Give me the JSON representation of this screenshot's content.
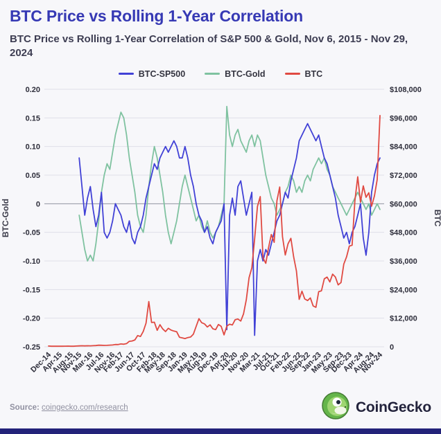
{
  "page": {
    "title": "BTC Price vs Rolling 1-Year Correlation",
    "subtitle": "BTC Price vs Rolling 1-Year Correlation of S&P 500 & Gold, Nov 6, 2015 - Nov 29, 2024"
  },
  "colors": {
    "title": "#3639b4",
    "background": "#f7f7fa",
    "gridline": "#dfdfe8",
    "zero_line": "#8f93a0",
    "bottom_bar": "#232279"
  },
  "legend": [
    {
      "label": "BTC-SP500",
      "color": "#4141d6"
    },
    {
      "label": "BTC-Gold",
      "color": "#7fc2a0"
    },
    {
      "label": "BTC",
      "color": "#e04a42"
    }
  ],
  "footer": {
    "source_label": "Source:",
    "source_link": "coingecko.com/research",
    "brand": "CoinGecko",
    "brand_icon": "coingecko-gecko-icon"
  },
  "chart_data": {
    "type": "line",
    "title": "BTC Price vs Rolling 1-Year Correlation",
    "xlabel": "",
    "x_start": "Dec-2014",
    "x_interval": "monthly",
    "grid": "horizontal-only",
    "legend_position": "top-center",
    "left_axis": {
      "label": "BTC-Gold",
      "min": -0.25,
      "max": 0.2,
      "ticks": [
        {
          "label": "0.20",
          "value": 0.2
        },
        {
          "label": "0.15",
          "value": 0.15
        },
        {
          "label": "0.10",
          "value": 0.1
        },
        {
          "label": "0.05",
          "value": 0.05
        },
        {
          "label": "0",
          "value": 0
        },
        {
          "label": "-0.05",
          "value": -0.05
        },
        {
          "label": "-0.10",
          "value": -0.1
        },
        {
          "label": "-0.15",
          "value": -0.15
        },
        {
          "label": "-0.20",
          "value": -0.2
        },
        {
          "label": "-0.25",
          "value": -0.25
        }
      ]
    },
    "right_axis": {
      "label": "BTC",
      "min": 0,
      "max": 108000,
      "ticks": [
        {
          "label": "$108,000",
          "value": 108000
        },
        {
          "label": "$96,000",
          "value": 96000
        },
        {
          "label": "$84,000",
          "value": 84000
        },
        {
          "label": "$72,000",
          "value": 72000
        },
        {
          "label": "$60,000",
          "value": 60000
        },
        {
          "label": "$48,000",
          "value": 48000
        },
        {
          "label": "$36,000",
          "value": 36000
        },
        {
          "label": "$24,000",
          "value": 24000
        },
        {
          "label": "$12,000",
          "value": 12000
        },
        {
          "label": "0",
          "value": 0
        }
      ]
    },
    "x_ticks": [
      {
        "label": "Dec-14",
        "i": 0
      },
      {
        "label": "Apr-15",
        "i": 4
      },
      {
        "label": "Aug-15",
        "i": 8
      },
      {
        "label": "Nov-15",
        "i": 11
      },
      {
        "label": "Mar-16",
        "i": 15
      },
      {
        "label": "Jul-16",
        "i": 19
      },
      {
        "label": "Nov-16",
        "i": 23
      },
      {
        "label": "Feb-17",
        "i": 26
      },
      {
        "label": "Jun-17",
        "i": 30
      },
      {
        "label": "Oct-17",
        "i": 34
      },
      {
        "label": "Feb-18",
        "i": 38
      },
      {
        "label": "May-18",
        "i": 41
      },
      {
        "label": "Sep-18",
        "i": 45
      },
      {
        "label": "Jan-19",
        "i": 49
      },
      {
        "label": "May-19",
        "i": 53
      },
      {
        "label": "Aug-19",
        "i": 56
      },
      {
        "label": "Dec-19",
        "i": 60
      },
      {
        "label": "Apr-20",
        "i": 64
      },
      {
        "label": "Jul-20",
        "i": 67
      },
      {
        "label": "Nov-20",
        "i": 71
      },
      {
        "label": "Mar-21",
        "i": 75
      },
      {
        "label": "Jul-21",
        "i": 79
      },
      {
        "label": "Oct-21",
        "i": 82
      },
      {
        "label": "Feb-22",
        "i": 86
      },
      {
        "label": "Jun-22",
        "i": 90
      },
      {
        "label": "Sep-22",
        "i": 93
      },
      {
        "label": "Jan-23",
        "i": 97
      },
      {
        "label": "May-23",
        "i": 101
      },
      {
        "label": "Sep-23",
        "i": 105
      },
      {
        "label": "Dec-23",
        "i": 108
      },
      {
        "label": "Apr-24",
        "i": 112
      },
      {
        "label": "Aug-24",
        "i": 116
      },
      {
        "label": "Nov-24",
        "i": 119
      }
    ],
    "series": [
      {
        "name": "BTC-SP500",
        "axis": "left",
        "color": "#4141d6",
        "values": [
          null,
          null,
          null,
          null,
          null,
          null,
          null,
          null,
          null,
          null,
          null,
          0.08,
          0.03,
          -0.02,
          0.01,
          0.03,
          -0.01,
          -0.04,
          -0.02,
          0.02,
          -0.05,
          -0.06,
          -0.05,
          -0.03,
          0.0,
          -0.01,
          -0.02,
          -0.04,
          -0.05,
          -0.03,
          -0.06,
          -0.07,
          -0.05,
          -0.04,
          -0.02,
          0.01,
          0.03,
          0.05,
          0.07,
          0.06,
          0.08,
          0.09,
          0.1,
          0.09,
          0.1,
          0.11,
          0.1,
          0.08,
          0.08,
          0.1,
          0.08,
          0.05,
          0.03,
          0.0,
          -0.02,
          -0.03,
          -0.05,
          -0.04,
          -0.06,
          -0.07,
          -0.05,
          -0.04,
          -0.03,
          0.0,
          -0.22,
          -0.02,
          0.01,
          -0.02,
          0.03,
          0.04,
          0.01,
          -0.02,
          0.0,
          0.02,
          -0.23,
          -0.1,
          -0.08,
          -0.1,
          -0.08,
          -0.09,
          -0.07,
          -0.05,
          -0.03,
          -0.02,
          0.0,
          0.02,
          0.01,
          0.04,
          0.06,
          0.08,
          0.11,
          0.12,
          0.13,
          0.14,
          0.13,
          0.12,
          0.11,
          0.12,
          0.1,
          0.08,
          0.07,
          0.05,
          0.03,
          0.01,
          -0.02,
          -0.04,
          -0.06,
          -0.05,
          -0.07,
          -0.05,
          -0.04,
          -0.02,
          0.0,
          -0.06,
          -0.09,
          -0.05,
          0.02,
          0.05,
          0.07,
          0.08
        ]
      },
      {
        "name": "BTC-Gold",
        "axis": "left",
        "color": "#7fc2a0",
        "values": [
          null,
          null,
          null,
          null,
          null,
          null,
          null,
          null,
          null,
          null,
          null,
          -0.02,
          -0.05,
          -0.08,
          -0.1,
          -0.09,
          -0.1,
          -0.07,
          -0.03,
          0.02,
          0.05,
          0.07,
          0.06,
          0.09,
          0.12,
          0.14,
          0.16,
          0.15,
          0.12,
          0.08,
          0.05,
          0.02,
          -0.02,
          -0.04,
          -0.05,
          -0.02,
          0.03,
          0.07,
          0.1,
          0.08,
          0.05,
          0.02,
          -0.02,
          -0.05,
          -0.07,
          -0.05,
          -0.03,
          0.0,
          0.03,
          0.05,
          0.03,
          0.01,
          -0.01,
          -0.03,
          -0.02,
          -0.04,
          -0.05,
          -0.03,
          -0.05,
          -0.06,
          -0.05,
          -0.04,
          -0.02,
          0.0,
          0.17,
          0.12,
          0.1,
          0.12,
          0.13,
          0.11,
          0.1,
          0.09,
          0.11,
          0.12,
          0.1,
          0.12,
          0.11,
          0.08,
          0.05,
          0.03,
          0.01,
          0.0,
          -0.02,
          -0.01,
          0.0,
          0.02,
          0.03,
          0.05,
          0.04,
          0.02,
          0.03,
          0.02,
          0.04,
          0.05,
          0.04,
          0.06,
          0.07,
          0.08,
          0.07,
          0.08,
          0.06,
          0.05,
          0.03,
          0.02,
          0.01,
          0.0,
          -0.01,
          -0.02,
          -0.01,
          0.0,
          0.01,
          0.02,
          0.01,
          0.0,
          -0.01,
          0.0,
          -0.02,
          -0.01,
          0.0,
          -0.01
        ]
      },
      {
        "name": "BTC",
        "axis": "right",
        "color": "#e04a42",
        "values": [
          320,
          220,
          250,
          245,
          235,
          230,
          260,
          285,
          230,
          235,
          315,
          375,
          430,
          370,
          435,
          415,
          450,
          530,
          670,
          625,
          575,
          610,
          700,
          745,
          960,
          920,
          1190,
          1080,
          1350,
          2300,
          2450,
          2870,
          4700,
          4340,
          6450,
          9900,
          19000,
          10200,
          10300,
          6900,
          9250,
          7500,
          6400,
          7750,
          7000,
          6600,
          6300,
          4000,
          3750,
          3450,
          3850,
          4100,
          5300,
          8550,
          11800,
          10100,
          9600,
          8300,
          9200,
          7550,
          7200,
          9350,
          8550,
          5000,
          8650,
          9450,
          9150,
          11350,
          11650,
          10800,
          13800,
          19700,
          29000,
          33100,
          45200,
          58900,
          63000,
          37300,
          35000,
          41600,
          47100,
          43800,
          61300,
          67000,
          46200,
          38500,
          43200,
          45500,
          37700,
          31800,
          19900,
          23300,
          20050,
          19400,
          20500,
          17150,
          16550,
          23100,
          23500,
          28500,
          29250,
          27200,
          30450,
          29250,
          25950,
          26950,
          34650,
          37700,
          42250,
          42600,
          61200,
          71300,
          60650,
          67500,
          62700,
          64600,
          58950,
          63300,
          70200,
          97000
        ]
      }
    ]
  }
}
